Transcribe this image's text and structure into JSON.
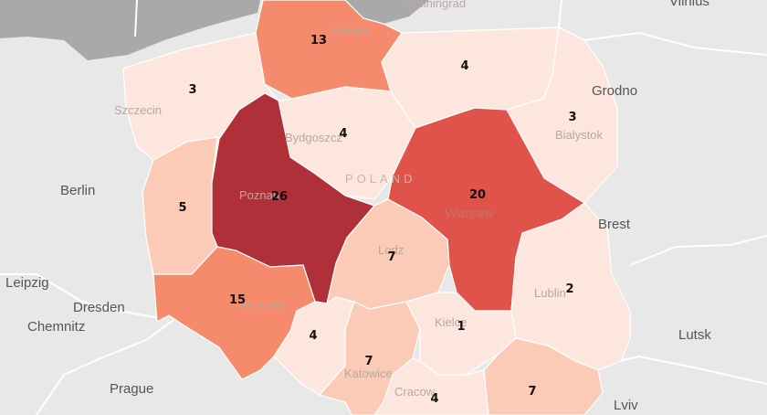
{
  "colors": {
    "background": "#e8e8e8",
    "sea": "#a9a9a9",
    "scale": [
      "#fde6dd",
      "#fbcbb8",
      "#f58b6c",
      "#e0534b",
      "#b0303a"
    ]
  },
  "map": {
    "country_label": "POLAND",
    "cities": [
      {
        "id": "vilnius",
        "name": "Vilnius"
      },
      {
        "id": "grodno",
        "name": "Grodno"
      },
      {
        "id": "brest",
        "name": "Brest"
      },
      {
        "id": "berlin",
        "name": "Berlin"
      },
      {
        "id": "leipzig",
        "name": "Leipzig"
      },
      {
        "id": "dresden",
        "name": "Dresden"
      },
      {
        "id": "chemnitz",
        "name": "Chemnitz"
      },
      {
        "id": "prague",
        "name": "Prague"
      },
      {
        "id": "lutsk",
        "name": "Lutsk"
      },
      {
        "id": "lviv",
        "name": "Lviv"
      }
    ],
    "faint_labels": [
      {
        "id": "kaliningrad",
        "name": "Kaliningrad"
      },
      {
        "id": "gdansk",
        "name": "Gdansk"
      },
      {
        "id": "szczecin",
        "name": "Szczecin"
      },
      {
        "id": "bydgoszcz",
        "name": "Bydgoszcz"
      },
      {
        "id": "bialystok",
        "name": "Bialystok"
      },
      {
        "id": "poznan",
        "name": "Poznan"
      },
      {
        "id": "warsaw",
        "name": "Warsaw"
      },
      {
        "id": "lodz",
        "name": "Lodz"
      },
      {
        "id": "lublin",
        "name": "Lublin"
      },
      {
        "id": "wroclaw",
        "name": "Wroclaw"
      },
      {
        "id": "kielce",
        "name": "Kielce"
      },
      {
        "id": "katowice",
        "name": "Katowice"
      },
      {
        "id": "cracow",
        "name": "Cracow"
      }
    ],
    "regions": [
      {
        "id": "zachodniopomorskie",
        "value": 3
      },
      {
        "id": "pomorskie",
        "value": 13
      },
      {
        "id": "warminsko-mazurskie",
        "value": 4
      },
      {
        "id": "podlaskie",
        "value": 3
      },
      {
        "id": "kujawsko-pomorskie",
        "value": 4
      },
      {
        "id": "lubuskie",
        "value": 5
      },
      {
        "id": "wielkopolskie",
        "value": 26
      },
      {
        "id": "mazowieckie",
        "value": 20
      },
      {
        "id": "lodzkie",
        "value": 7
      },
      {
        "id": "dolnoslaskie",
        "value": 15
      },
      {
        "id": "opolskie",
        "value": 4
      },
      {
        "id": "slaskie",
        "value": 7
      },
      {
        "id": "swietokrzyskie",
        "value": 1
      },
      {
        "id": "lubelskie",
        "value": 2
      },
      {
        "id": "malopolskie",
        "value": 4
      },
      {
        "id": "podkarpackie",
        "value": 7
      }
    ]
  }
}
